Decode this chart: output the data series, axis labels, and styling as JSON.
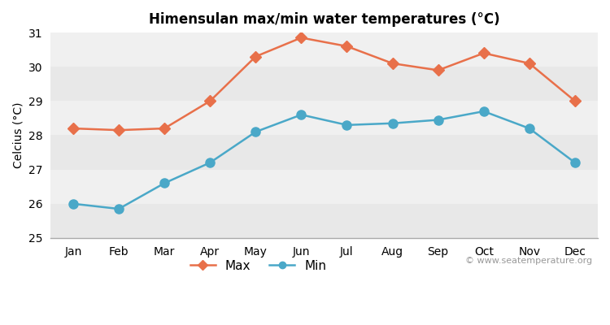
{
  "months": [
    "Jan",
    "Feb",
    "Mar",
    "Apr",
    "May",
    "Jun",
    "Jul",
    "Aug",
    "Sep",
    "Oct",
    "Nov",
    "Dec"
  ],
  "max_temps": [
    28.2,
    28.15,
    28.2,
    29.0,
    30.3,
    30.85,
    30.6,
    30.1,
    29.9,
    30.4,
    30.1,
    29.0
  ],
  "min_temps": [
    26.0,
    25.85,
    26.6,
    27.2,
    28.1,
    28.6,
    28.3,
    28.35,
    28.45,
    28.7,
    28.2,
    27.2
  ],
  "max_color": "#e8704a",
  "min_color": "#4aa8c8",
  "bg_color": "#ffffff",
  "plot_bg_color": "#f0f0f0",
  "band_colors": [
    "#e8e8e8",
    "#f0f0f0"
  ],
  "title": "Himensulan max/min water temperatures (°C)",
  "ylabel": "Celcius (°C)",
  "ylim": [
    25,
    31
  ],
  "yticks": [
    25,
    26,
    27,
    28,
    29,
    30,
    31
  ],
  "watermark": "© www.seatemperature.org",
  "max_marker": "D",
  "min_marker": "o",
  "marker_size_max": 7,
  "marker_size_min": 8,
  "line_width": 1.8
}
